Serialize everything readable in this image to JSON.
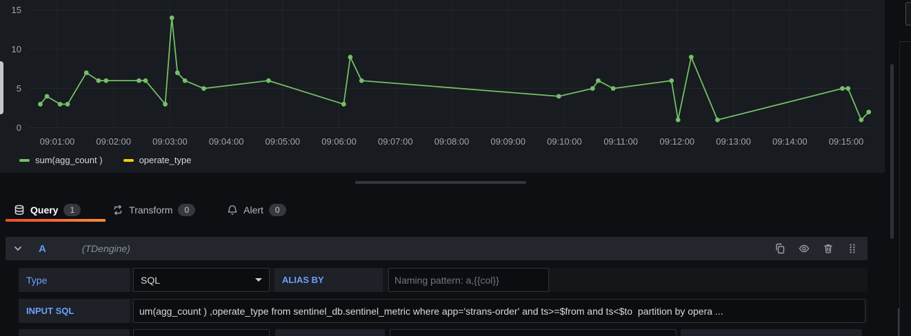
{
  "colors": {
    "series_green": "#73bf69",
    "series_yellow": "#f2cc0c",
    "accent_blue": "#6e9fff",
    "active_tab_gradient": [
      "#eb4e27",
      "#ff8a3c"
    ],
    "panel_bg": "#181b1f",
    "page_bg": "#0e0f13"
  },
  "chart_data": {
    "type": "line",
    "title": "",
    "xlabel": "",
    "ylabel": "",
    "x_axis": {
      "tick_labels": [
        "09:01:00",
        "09:02:00",
        "09:03:00",
        "09:04:00",
        "09:05:00",
        "09:06:00",
        "09:07:00",
        "09:08:00",
        "09:09:00",
        "09:10:00",
        "09:11:00",
        "09:12:00",
        "09:13:00",
        "09:14:00",
        "09:15:00"
      ]
    },
    "y_axis": {
      "ticks": [
        0,
        5,
        10,
        15
      ],
      "range": [
        0,
        15.8
      ]
    },
    "grid": true,
    "legend_position": "bottom-left",
    "series": [
      {
        "name": "sum(agg_count )",
        "color": "#73bf69",
        "points_t_sec_value": [
          [
            42,
            3
          ],
          [
            49,
            4
          ],
          [
            63,
            3
          ],
          [
            71,
            3
          ],
          [
            91,
            7
          ],
          [
            104,
            6
          ],
          [
            112,
            6
          ],
          [
            147,
            6
          ],
          [
            154,
            6
          ],
          [
            175,
            3
          ],
          [
            182,
            14
          ],
          [
            188,
            7
          ],
          [
            196,
            6
          ],
          [
            216,
            5
          ],
          [
            285,
            6
          ],
          [
            365,
            3
          ],
          [
            372,
            9
          ],
          [
            384,
            6
          ],
          [
            594,
            4
          ],
          [
            630,
            5
          ],
          [
            636,
            6
          ],
          [
            652,
            5
          ],
          [
            714,
            6
          ],
          [
            721,
            1
          ],
          [
            735,
            9
          ],
          [
            763,
            1
          ],
          [
            896,
            5
          ],
          [
            902,
            5
          ],
          [
            916,
            1
          ],
          [
            924,
            2
          ]
        ]
      },
      {
        "name": "operate_type",
        "color": "#f2cc0c",
        "points_t_sec_value": []
      }
    ]
  },
  "tabs": [
    {
      "label": "Query",
      "badge": "1",
      "icon": "database-icon",
      "active": true
    },
    {
      "label": "Transform",
      "badge": "0",
      "icon": "transform-icon",
      "active": false
    },
    {
      "label": "Alert",
      "badge": "0",
      "icon": "bell-icon",
      "active": false
    }
  ],
  "query": {
    "ref_id": "A",
    "datasource": "(TDengine)",
    "fields": {
      "type": {
        "label": "Type",
        "value": "SQL"
      },
      "alias_by": {
        "label": "ALIAS BY",
        "placeholder": "Naming pattern: a,{{col}}"
      },
      "input_sql": {
        "label": "INPUT SQL",
        "value": "um(agg_count ) ,operate_type from sentinel_db.sentinel_metric where app='strans-order' and ts>=$from and ts<$to  partition by opera ..."
      }
    }
  }
}
